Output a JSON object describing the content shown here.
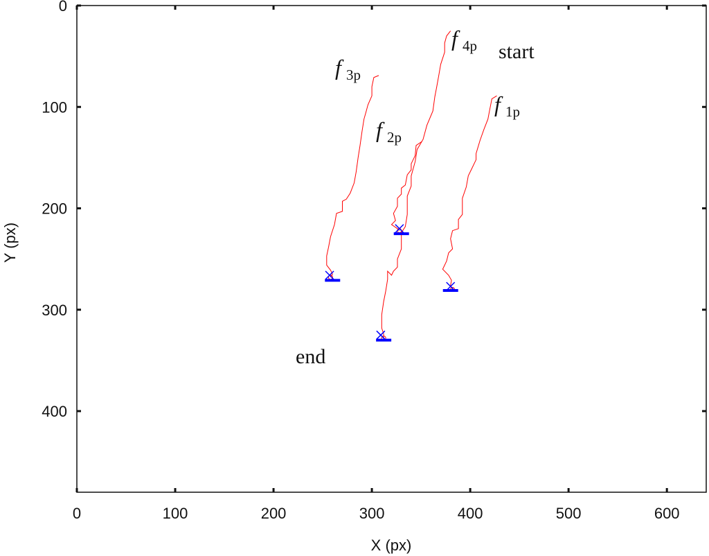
{
  "chart_data": {
    "type": "line",
    "title": "",
    "xlabel": "X (px)",
    "ylabel": "Y (px)",
    "xlim": [
      0,
      640
    ],
    "ylim": [
      480,
      0
    ],
    "y_axis_inverted": true,
    "xticks": [
      0,
      100,
      200,
      300,
      400,
      500,
      600
    ],
    "yticks": [
      0,
      100,
      200,
      300,
      400
    ],
    "grid": false,
    "line_color": "#ff0000",
    "marker_color": "#0000ff",
    "series": [
      {
        "name": "f1p",
        "points": [
          [
            427,
            89
          ],
          [
            422,
            92
          ],
          [
            420,
            102
          ],
          [
            418,
            112
          ],
          [
            414,
            122
          ],
          [
            410,
            133
          ],
          [
            406,
            146
          ],
          [
            406,
            152
          ],
          [
            402,
            160
          ],
          [
            398,
            168
          ],
          [
            396,
            179
          ],
          [
            392,
            190
          ],
          [
            392,
            206
          ],
          [
            388,
            211
          ],
          [
            388,
            220
          ],
          [
            382,
            222
          ],
          [
            380,
            230
          ],
          [
            382,
            240
          ],
          [
            378,
            244
          ],
          [
            376,
            252
          ],
          [
            372,
            260
          ],
          [
            378,
            266
          ],
          [
            381,
            271
          ],
          [
            380,
            276
          ],
          [
            382,
            280
          ]
        ],
        "end": [
          380,
          277
        ],
        "ground_truth_end": [
          380,
          281
        ]
      },
      {
        "name": "f2p",
        "points": [
          [
            351,
            134
          ],
          [
            345,
            138
          ],
          [
            344,
            148
          ],
          [
            340,
            156
          ],
          [
            340,
            162
          ],
          [
            336,
            167
          ],
          [
            334,
            177
          ],
          [
            330,
            180
          ],
          [
            330,
            186
          ],
          [
            326,
            190
          ],
          [
            326,
            198
          ],
          [
            322,
            205
          ],
          [
            324,
            212
          ],
          [
            320,
            216
          ],
          [
            326,
            220
          ],
          [
            328,
            222
          ]
        ],
        "end": [
          328,
          220
        ],
        "ground_truth_end": [
          330,
          225
        ]
      },
      {
        "name": "f3p",
        "points": [
          [
            307,
            69
          ],
          [
            302,
            71
          ],
          [
            300,
            80
          ],
          [
            300,
            89
          ],
          [
            296,
            98
          ],
          [
            294,
            105
          ],
          [
            292,
            112
          ],
          [
            290,
            124
          ],
          [
            288,
            138
          ],
          [
            286,
            150
          ],
          [
            284,
            164
          ],
          [
            282,
            175
          ],
          [
            278,
            185
          ],
          [
            274,
            191
          ],
          [
            270,
            193
          ],
          [
            270,
            203
          ],
          [
            264,
            205
          ],
          [
            262,
            216
          ],
          [
            258,
            228
          ],
          [
            256,
            238
          ],
          [
            254,
            247
          ],
          [
            254,
            256
          ],
          [
            258,
            261
          ],
          [
            260,
            265
          ],
          [
            258,
            268
          ]
        ],
        "end": [
          257,
          266
        ],
        "ground_truth_end": [
          260,
          271
        ]
      },
      {
        "name": "f4p",
        "points": [
          [
            380,
            25
          ],
          [
            376,
            30
          ],
          [
            374,
            37
          ],
          [
            374,
            46
          ],
          [
            370,
            58
          ],
          [
            368,
            69
          ],
          [
            366,
            80
          ],
          [
            364,
            90
          ],
          [
            362,
            104
          ],
          [
            356,
            118
          ],
          [
            352,
            132
          ],
          [
            346,
            142
          ],
          [
            344,
            154
          ],
          [
            340,
            168
          ],
          [
            340,
            178
          ],
          [
            336,
            188
          ],
          [
            336,
            206
          ],
          [
            334,
            218
          ],
          [
            330,
            224
          ],
          [
            330,
            240
          ],
          [
            326,
            250
          ],
          [
            326,
            258
          ],
          [
            322,
            262
          ],
          [
            320,
            266
          ],
          [
            316,
            262
          ],
          [
            316,
            270
          ],
          [
            314,
            282
          ],
          [
            312,
            292
          ],
          [
            310,
            305
          ],
          [
            310,
            312
          ],
          [
            310,
            318
          ],
          [
            312,
            324
          ],
          [
            312,
            328
          ]
        ],
        "end": [
          309,
          325
        ],
        "ground_truth_end": [
          312,
          330
        ]
      }
    ],
    "annotations": {
      "start": "start",
      "end": "end",
      "f_symbol": "f",
      "label_1": "1p",
      "label_2": "2p",
      "label_3": "3p",
      "label_4": "4p"
    }
  }
}
